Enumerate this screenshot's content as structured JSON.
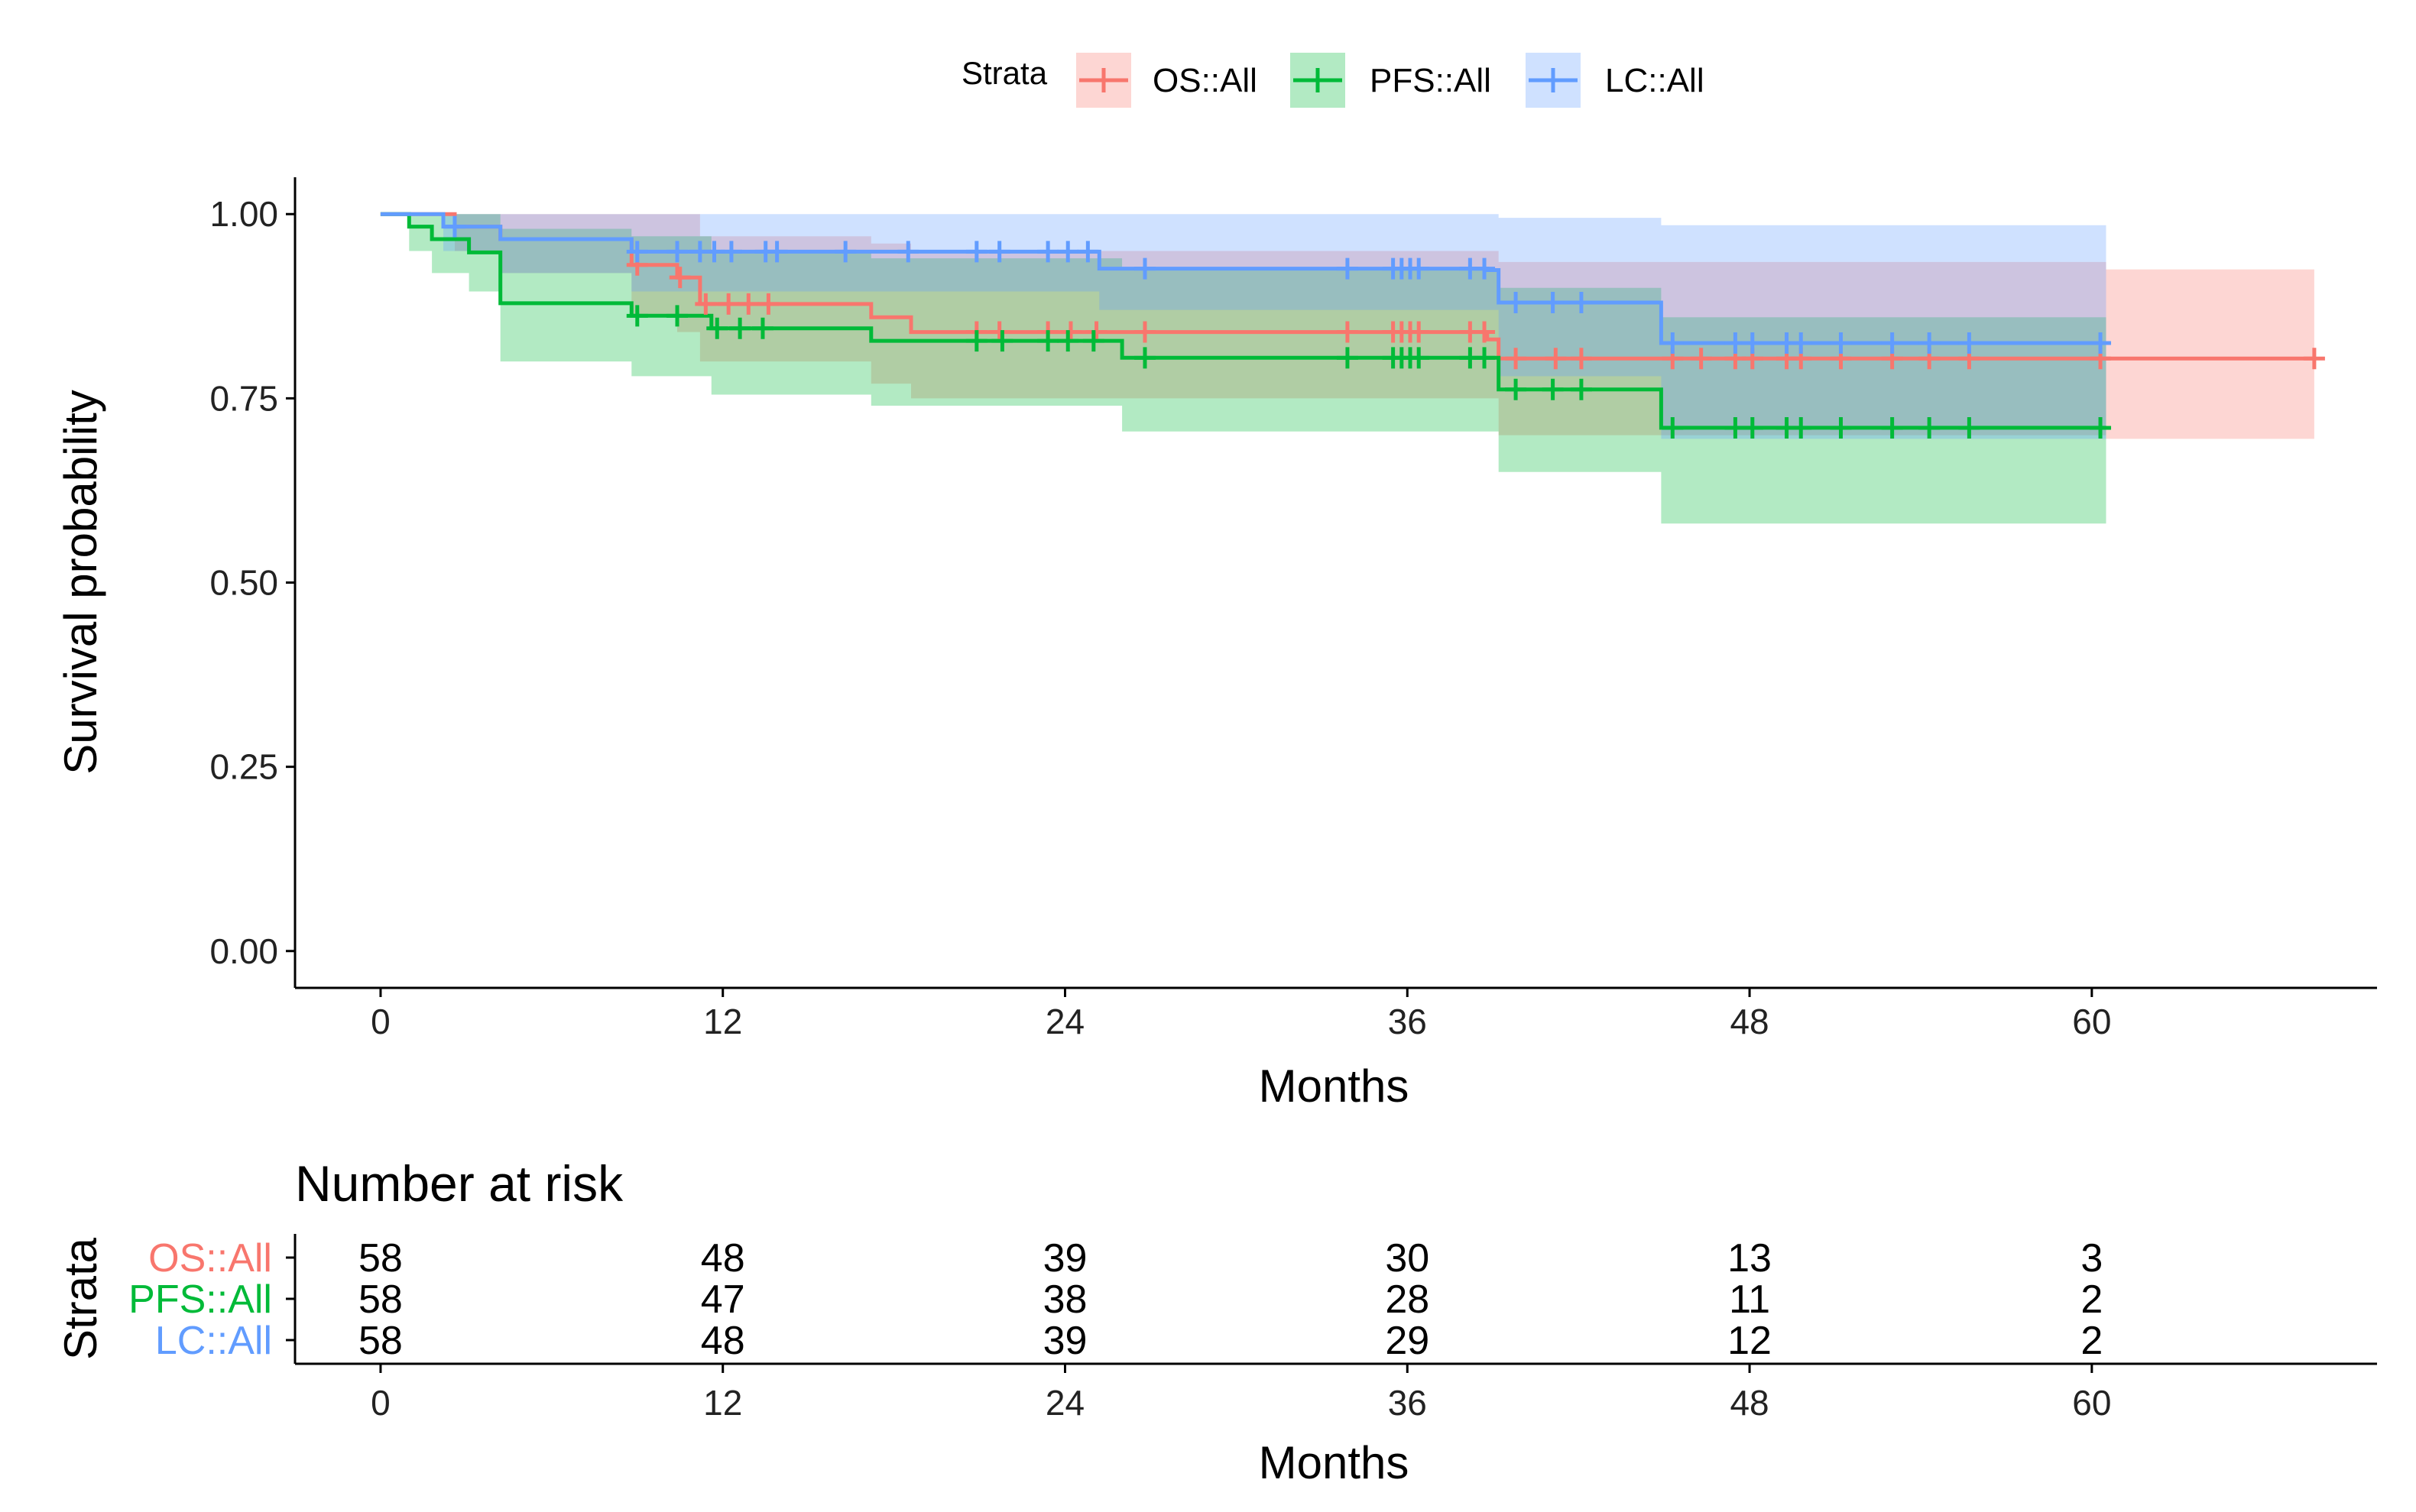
{
  "chart_data": {
    "type": "line",
    "subtype": "kaplan-meier survival curve with confidence bands",
    "legend": {
      "title": "Strata",
      "position": "top",
      "entries": [
        "OS::All",
        "PFS::All",
        "LC::All"
      ]
    },
    "xlabel": "Months",
    "ylabel": "Survival probability",
    "xlim": [
      -3,
      70
    ],
    "ylim": [
      -0.05,
      1.05
    ],
    "xticks": [
      0,
      12,
      24,
      36,
      48,
      60
    ],
    "xtick_labels": [
      "0",
      "12",
      "24",
      "36",
      "48",
      "60"
    ],
    "yticks": [
      0,
      0.25,
      0.5,
      0.75,
      1.0
    ],
    "ytick_labels": [
      "0.00",
      "0.25",
      "0.50",
      "0.75",
      "1.00"
    ],
    "series": [
      {
        "name": "OS::All",
        "color": "#F8766D",
        "band_color": "#F8766D",
        "steps": [
          [
            0,
            1.0
          ],
          [
            2.6,
            0.983
          ],
          [
            4.2,
            0.966
          ],
          [
            8.8,
            0.931
          ],
          [
            10.4,
            0.914
          ],
          [
            11.2,
            0.878
          ],
          [
            17.2,
            0.86
          ],
          [
            18.6,
            0.84
          ],
          [
            38.8,
            0.83
          ],
          [
            39.2,
            0.804
          ],
          [
            60.5,
            0.804
          ],
          [
            67.8,
            0.804
          ]
        ],
        "band": [
          [
            0,
            1.0,
            1.0
          ],
          [
            2.6,
            1.0,
            0.95
          ],
          [
            4.2,
            1.0,
            0.92
          ],
          [
            8.8,
            1.0,
            0.86
          ],
          [
            10.4,
            1.0,
            0.84
          ],
          [
            11.2,
            0.97,
            0.8
          ],
          [
            17.2,
            0.96,
            0.77
          ],
          [
            18.6,
            0.95,
            0.75
          ],
          [
            39.2,
            0.935,
            0.7
          ],
          [
            60.5,
            0.925,
            0.695
          ],
          [
            67.8,
            0.925,
            0.695
          ]
        ],
        "censor": [
          [
            9.0,
            0.931
          ],
          [
            10.5,
            0.914
          ],
          [
            11.4,
            0.878
          ],
          [
            12.2,
            0.878
          ],
          [
            12.9,
            0.878
          ],
          [
            13.6,
            0.878
          ],
          [
            20.9,
            0.84
          ],
          [
            21.7,
            0.84
          ],
          [
            23.4,
            0.84
          ],
          [
            24.2,
            0.84
          ],
          [
            25.1,
            0.84
          ],
          [
            26.8,
            0.84
          ],
          [
            33.9,
            0.84
          ],
          [
            35.5,
            0.84
          ],
          [
            35.8,
            0.84
          ],
          [
            36.1,
            0.84
          ],
          [
            36.4,
            0.84
          ],
          [
            38.2,
            0.84
          ],
          [
            38.7,
            0.84
          ],
          [
            39.8,
            0.804
          ],
          [
            41.2,
            0.804
          ],
          [
            42.1,
            0.804
          ],
          [
            45.3,
            0.804
          ],
          [
            46.3,
            0.804
          ],
          [
            47.5,
            0.804
          ],
          [
            48.1,
            0.804
          ],
          [
            49.3,
            0.804
          ],
          [
            49.8,
            0.804
          ],
          [
            51.2,
            0.804
          ],
          [
            53.0,
            0.804
          ],
          [
            54.3,
            0.804
          ],
          [
            55.7,
            0.804
          ],
          [
            60.3,
            0.804
          ],
          [
            67.8,
            0.804
          ]
        ]
      },
      {
        "name": "PFS::All",
        "color": "#00BA38",
        "band_color": "#00BA38",
        "steps": [
          [
            0,
            1.0
          ],
          [
            1.0,
            0.983
          ],
          [
            1.8,
            0.966
          ],
          [
            3.1,
            0.948
          ],
          [
            4.2,
            0.879
          ],
          [
            8.8,
            0.862
          ],
          [
            11.6,
            0.845
          ],
          [
            17.2,
            0.828
          ],
          [
            26.0,
            0.805
          ],
          [
            39.2,
            0.762
          ],
          [
            44.9,
            0.71
          ],
          [
            60.5,
            0.71
          ]
        ],
        "band": [
          [
            0,
            1.0,
            1.0
          ],
          [
            1.0,
            1.0,
            0.95
          ],
          [
            1.8,
            1.0,
            0.92
          ],
          [
            3.1,
            1.0,
            0.895
          ],
          [
            4.2,
            0.98,
            0.8
          ],
          [
            8.8,
            0.97,
            0.78
          ],
          [
            11.6,
            0.95,
            0.755
          ],
          [
            17.2,
            0.94,
            0.74
          ],
          [
            26.0,
            0.925,
            0.705
          ],
          [
            39.2,
            0.9,
            0.65
          ],
          [
            44.9,
            0.86,
            0.58
          ],
          [
            60.5,
            0.86,
            0.58
          ]
        ],
        "censor": [
          [
            9.0,
            0.862
          ],
          [
            10.4,
            0.862
          ],
          [
            11.8,
            0.845
          ],
          [
            12.6,
            0.845
          ],
          [
            13.4,
            0.845
          ],
          [
            20.9,
            0.828
          ],
          [
            21.8,
            0.828
          ],
          [
            23.4,
            0.828
          ],
          [
            24.1,
            0.828
          ],
          [
            25.0,
            0.828
          ],
          [
            26.8,
            0.805
          ],
          [
            33.9,
            0.805
          ],
          [
            35.5,
            0.805
          ],
          [
            35.8,
            0.805
          ],
          [
            36.1,
            0.805
          ],
          [
            36.4,
            0.805
          ],
          [
            38.2,
            0.805
          ],
          [
            38.7,
            0.805
          ],
          [
            39.8,
            0.762
          ],
          [
            41.1,
            0.762
          ],
          [
            42.1,
            0.762
          ],
          [
            45.3,
            0.71
          ],
          [
            47.5,
            0.71
          ],
          [
            48.1,
            0.71
          ],
          [
            49.3,
            0.71
          ],
          [
            49.8,
            0.71
          ],
          [
            51.2,
            0.71
          ],
          [
            53.0,
            0.71
          ],
          [
            54.3,
            0.71
          ],
          [
            55.7,
            0.71
          ],
          [
            60.3,
            0.71
          ]
        ]
      },
      {
        "name": "LC::All",
        "color": "#619CFF",
        "band_color": "#619CFF",
        "steps": [
          [
            0,
            1.0
          ],
          [
            2.2,
            0.983
          ],
          [
            4.2,
            0.966
          ],
          [
            8.8,
            0.949
          ],
          [
            25.2,
            0.926
          ],
          [
            38.8,
            0.924
          ],
          [
            39.2,
            0.88
          ],
          [
            44.9,
            0.825
          ],
          [
            60.5,
            0.825
          ]
        ],
        "band": [
          [
            0,
            1.0,
            1.0
          ],
          [
            2.2,
            1.0,
            0.95
          ],
          [
            4.2,
            1.0,
            0.92
          ],
          [
            8.8,
            1.0,
            0.895
          ],
          [
            25.2,
            1.0,
            0.87
          ],
          [
            39.2,
            0.995,
            0.78
          ],
          [
            44.9,
            0.985,
            0.695
          ],
          [
            60.5,
            0.985,
            0.695
          ]
        ],
        "censor": [
          [
            2.6,
            0.983
          ],
          [
            9.0,
            0.949
          ],
          [
            10.4,
            0.949
          ],
          [
            11.2,
            0.949
          ],
          [
            11.7,
            0.949
          ],
          [
            12.3,
            0.949
          ],
          [
            13.5,
            0.949
          ],
          [
            13.9,
            0.949
          ],
          [
            16.3,
            0.949
          ],
          [
            18.5,
            0.949
          ],
          [
            20.9,
            0.949
          ],
          [
            21.7,
            0.949
          ],
          [
            23.4,
            0.949
          ],
          [
            24.1,
            0.949
          ],
          [
            24.8,
            0.949
          ],
          [
            26.8,
            0.926
          ],
          [
            33.9,
            0.926
          ],
          [
            35.5,
            0.926
          ],
          [
            35.8,
            0.926
          ],
          [
            36.1,
            0.926
          ],
          [
            36.4,
            0.926
          ],
          [
            38.2,
            0.926
          ],
          [
            38.7,
            0.926
          ],
          [
            39.8,
            0.88
          ],
          [
            41.1,
            0.88
          ],
          [
            42.1,
            0.88
          ],
          [
            45.3,
            0.825
          ],
          [
            47.5,
            0.825
          ],
          [
            48.1,
            0.825
          ],
          [
            49.3,
            0.825
          ],
          [
            49.8,
            0.825
          ],
          [
            51.2,
            0.825
          ],
          [
            53.0,
            0.825
          ],
          [
            54.3,
            0.825
          ],
          [
            55.7,
            0.825
          ],
          [
            60.3,
            0.825
          ]
        ]
      }
    ],
    "risk_table": {
      "title": "Number at risk",
      "ylabel": "Strata",
      "xlabel": "Months",
      "times": [
        0,
        12,
        24,
        36,
        48,
        60
      ],
      "time_labels": [
        "0",
        "12",
        "24",
        "36",
        "48",
        "60"
      ],
      "rows": [
        {
          "name": "OS::All",
          "color": "#F8766D",
          "values": [
            "58",
            "48",
            "39",
            "30",
            "13",
            "3"
          ]
        },
        {
          "name": "PFS::All",
          "color": "#00BA38",
          "values": [
            "58",
            "47",
            "38",
            "28",
            "11",
            "2"
          ]
        },
        {
          "name": "LC::All",
          "color": "#619CFF",
          "values": [
            "58",
            "48",
            "39",
            "29",
            "12",
            "2"
          ]
        }
      ]
    }
  }
}
